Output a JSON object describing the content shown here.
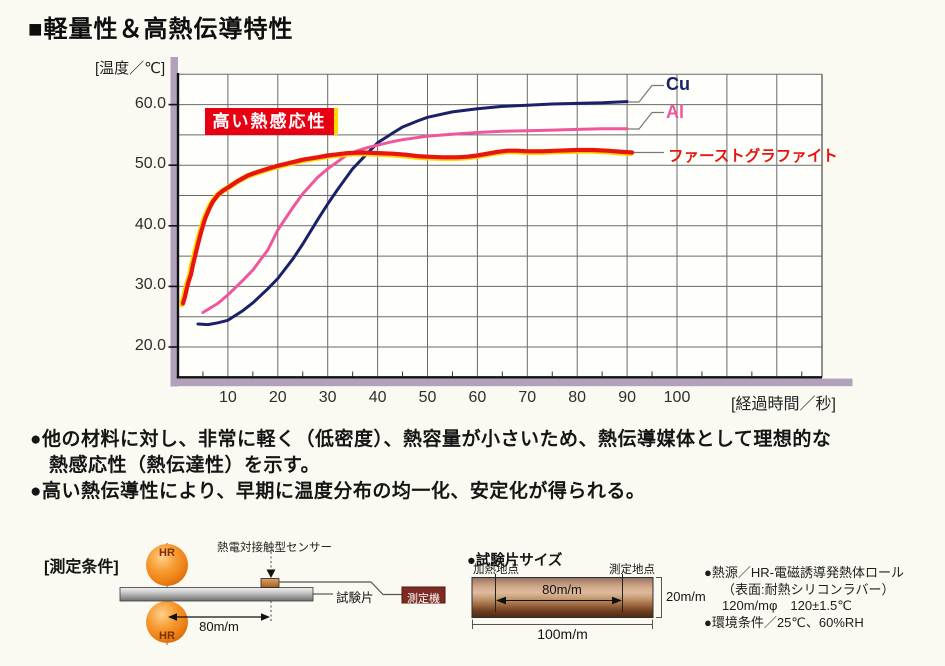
{
  "header": {
    "title": "■軽量性＆高熱伝導特性"
  },
  "chart": {
    "y_axis_label": "[温度／℃]",
    "x_axis_label": "[経過時間／秒]",
    "annotation": "高い熱感応性",
    "legend": {
      "cu": "Cu",
      "al": "Al",
      "graphite": "ファーストグラファイト"
    }
  },
  "chart_data": {
    "type": "line",
    "title": "高い熱感応性",
    "xlabel": "[経過時間／秒]",
    "ylabel": "[温度／℃]",
    "xlim": [
      0,
      130
    ],
    "ylim": [
      15,
      65
    ],
    "grid": true,
    "legend_position": "right-of-curve-ends",
    "x_ticks": [
      10,
      20,
      30,
      40,
      50,
      60,
      70,
      80,
      90,
      100
    ],
    "y_ticks": [
      {
        "v": 60,
        "label": "60.0"
      },
      {
        "v": 50,
        "label": "50.0"
      },
      {
        "v": 40,
        "label": "40.0"
      },
      {
        "v": 30,
        "label": "30.0"
      },
      {
        "v": 20,
        "label": "20.0"
      }
    ],
    "series": [
      {
        "name": "Cu",
        "color": "#1b2168",
        "width": 3,
        "points": [
          [
            4,
            23.8
          ],
          [
            6,
            23.7
          ],
          [
            8,
            24.0
          ],
          [
            10,
            24.4
          ],
          [
            13,
            26.0
          ],
          [
            15,
            27.3
          ],
          [
            18,
            29.6
          ],
          [
            20,
            31.3
          ],
          [
            23,
            34.5
          ],
          [
            25,
            37.0
          ],
          [
            28,
            41.0
          ],
          [
            30,
            43.6
          ],
          [
            32,
            46.0
          ],
          [
            35,
            49.4
          ],
          [
            38,
            52.0
          ],
          [
            40,
            53.7
          ],
          [
            43,
            55.3
          ],
          [
            45,
            56.3
          ],
          [
            48,
            57.3
          ],
          [
            50,
            57.9
          ],
          [
            55,
            58.8
          ],
          [
            60,
            59.3
          ],
          [
            65,
            59.7
          ],
          [
            70,
            59.9
          ],
          [
            75,
            60.1
          ],
          [
            80,
            60.2
          ],
          [
            85,
            60.3
          ],
          [
            90,
            60.5
          ]
        ]
      },
      {
        "name": "Al",
        "color": "#f0569c",
        "width": 3,
        "points": [
          [
            5,
            25.7
          ],
          [
            8,
            27.2
          ],
          [
            10,
            28.6
          ],
          [
            13,
            31.0
          ],
          [
            15,
            32.7
          ],
          [
            18,
            36.0
          ],
          [
            20,
            39.3
          ],
          [
            23,
            43.0
          ],
          [
            25,
            45.3
          ],
          [
            28,
            48.0
          ],
          [
            30,
            49.4
          ],
          [
            32,
            50.6
          ],
          [
            34,
            51.8
          ],
          [
            36,
            52.4
          ],
          [
            38,
            52.9
          ],
          [
            40,
            53.3
          ],
          [
            43,
            53.9
          ],
          [
            45,
            54.2
          ],
          [
            50,
            54.8
          ],
          [
            55,
            55.1
          ],
          [
            60,
            55.4
          ],
          [
            65,
            55.6
          ],
          [
            70,
            55.7
          ],
          [
            75,
            55.8
          ],
          [
            80,
            55.9
          ],
          [
            85,
            56.0
          ],
          [
            90,
            56.0
          ]
        ]
      },
      {
        "name": "ファーストグラファイト",
        "color": "#e8140f",
        "width": 4.2,
        "underlay": "#ffd700",
        "points": [
          [
            1,
            27.2
          ],
          [
            1.4,
            28.3
          ],
          [
            1.8,
            29.8
          ],
          [
            2.2,
            31.0
          ],
          [
            2.6,
            32.0
          ],
          [
            3,
            33.6
          ],
          [
            3.5,
            35.3
          ],
          [
            4,
            37.0
          ],
          [
            4.5,
            38.6
          ],
          [
            5,
            40.0
          ],
          [
            5.5,
            41.3
          ],
          [
            6,
            42.3
          ],
          [
            6.5,
            43.2
          ],
          [
            7,
            44.0
          ],
          [
            8,
            45.1
          ],
          [
            9,
            45.8
          ],
          [
            10,
            46.3
          ],
          [
            12,
            47.4
          ],
          [
            14,
            48.3
          ],
          [
            16,
            48.9
          ],
          [
            18,
            49.4
          ],
          [
            20,
            49.9
          ],
          [
            23,
            50.5
          ],
          [
            25,
            50.9
          ],
          [
            28,
            51.3
          ],
          [
            30,
            51.6
          ],
          [
            32,
            51.8
          ],
          [
            34,
            52.0
          ],
          [
            37,
            52.1
          ],
          [
            40,
            52.0
          ],
          [
            43,
            51.9
          ],
          [
            46,
            51.7
          ],
          [
            48,
            51.5
          ],
          [
            50,
            51.4
          ],
          [
            53,
            51.3
          ],
          [
            56,
            51.3
          ],
          [
            58,
            51.4
          ],
          [
            60,
            51.6
          ],
          [
            62,
            51.9
          ],
          [
            64,
            52.2
          ],
          [
            66,
            52.4
          ],
          [
            68,
            52.4
          ],
          [
            70,
            52.3
          ],
          [
            73,
            52.3
          ],
          [
            76,
            52.4
          ],
          [
            80,
            52.5
          ],
          [
            83,
            52.5
          ],
          [
            86,
            52.4
          ],
          [
            89,
            52.2
          ],
          [
            91,
            52.1
          ]
        ]
      }
    ]
  },
  "bullets": {
    "line1": "●他の材料に対し、非常に軽く（低密度）、熱容量が小さいため、熱伝導媒体として理想的な",
    "line2": "熱感応性（熱伝達性）を示す。",
    "line3": "●高い熱伝導性により、早期に温度分布の均一化、安定化が得られる。"
  },
  "measurement": {
    "label": "[測定条件]",
    "sensor_label": "熱電対接触型センサー",
    "roller_top": "HR",
    "roller_bottom": "HR",
    "dim_80": "80m/m",
    "piece_label": "試験片",
    "meter_label": "測定機"
  },
  "specimen": {
    "title": "●試験片サイズ",
    "heating_point": "加熱地点",
    "measuring_point": "測定地点",
    "dim_80": "80m/m",
    "dim_20": "20m/m",
    "dim_100": "100m/m"
  },
  "conditions": {
    "line1": "●熱源／HR-電磁誘導発熱体ロール",
    "line2": "（表面:耐熱シリコンラバー）",
    "line3": "120m/mφ　120±1.5℃",
    "line4": "●環境条件／25℃、60%RH"
  },
  "colors": {
    "cu": "#1b2168",
    "al": "#f0569c",
    "graphite": "#e8140f",
    "annotation_bg": "#e60012",
    "annotation_accent": "#ffd900",
    "frame_band": "#b1a1ba",
    "meter_box": "#7c2a22"
  }
}
